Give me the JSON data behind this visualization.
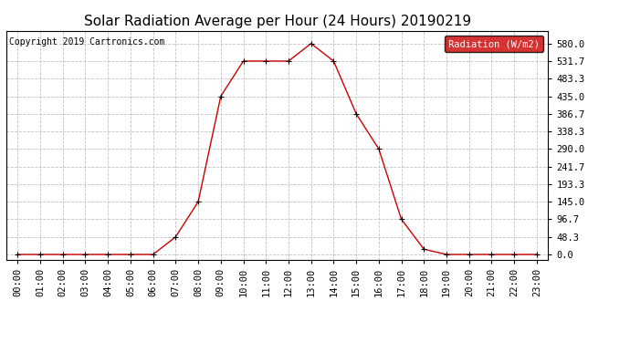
{
  "title": "Solar Radiation Average per Hour (24 Hours) 20190219",
  "copyright": "Copyright 2019 Cartronics.com",
  "legend_label": "Radiation (W/m2)",
  "hours": [
    "00:00",
    "01:00",
    "02:00",
    "03:00",
    "04:00",
    "05:00",
    "06:00",
    "07:00",
    "08:00",
    "09:00",
    "10:00",
    "11:00",
    "12:00",
    "13:00",
    "14:00",
    "15:00",
    "16:00",
    "17:00",
    "18:00",
    "19:00",
    "20:00",
    "21:00",
    "22:00",
    "23:00"
  ],
  "values": [
    0.0,
    0.0,
    0.0,
    0.0,
    0.0,
    0.0,
    0.0,
    48.3,
    145.0,
    435.0,
    531.7,
    531.7,
    531.7,
    580.0,
    531.7,
    386.7,
    290.0,
    96.7,
    14.5,
    0.0,
    0.0,
    0.0,
    0.0,
    0.0
  ],
  "line_color": "#cc0000",
  "marker_color": "#000000",
  "background_color": "#ffffff",
  "grid_color": "#bbbbbb",
  "yticks": [
    0.0,
    48.3,
    96.7,
    145.0,
    193.3,
    241.7,
    290.0,
    338.3,
    386.7,
    435.0,
    483.3,
    531.7,
    580.0
  ],
  "ylim": [
    -15,
    615
  ],
  "title_fontsize": 11,
  "tick_fontsize": 7.5,
  "copyright_fontsize": 7,
  "legend_bg": "#cc0000",
  "legend_text_color": "white",
  "legend_fontsize": 7.5
}
